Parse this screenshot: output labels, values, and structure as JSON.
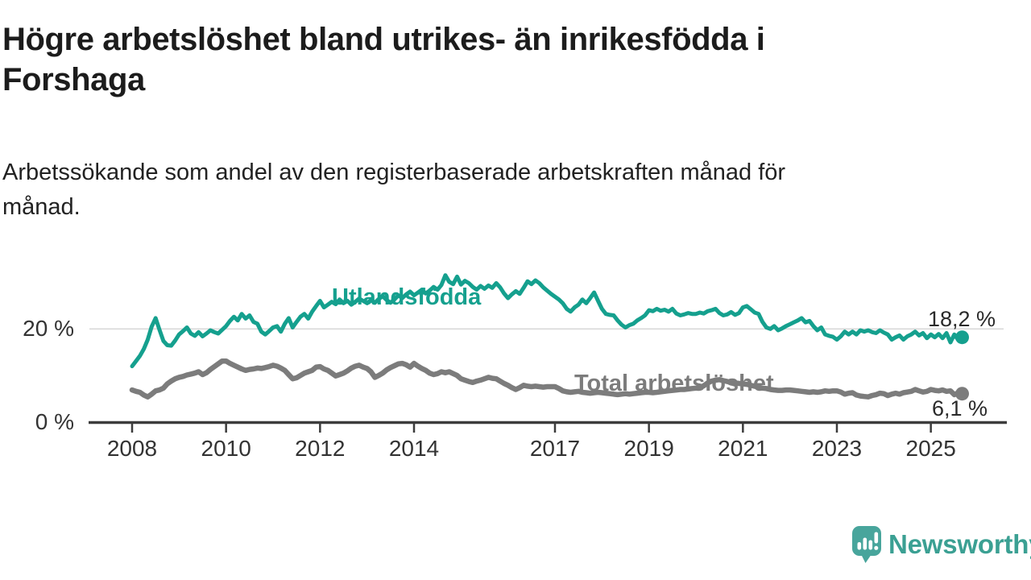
{
  "header": {
    "title": "Högre arbetslöshet bland utrikes- än inrikesfödda i Forshaga",
    "title_lines": [
      "Högre arbetslöshet bland utrikes- än inrikesfödda i",
      "Forshaga"
    ],
    "subtitle": "Arbetssökande som andel av den registerbaserade arbetskraften månad för månad.",
    "subtitle_lines": [
      "Arbetssökande som andel av den registerbaserade arbetskraften månad för",
      "månad."
    ]
  },
  "chart_data": {
    "type": "line",
    "unit": "%",
    "frequency": "monthly",
    "x_start": "2008-01",
    "x_end": "2025-09",
    "ylim": [
      0,
      32
    ],
    "grid": "single horizontal gridline at 20%",
    "legend_position": "inline labels on lines",
    "x_ticks": [
      {
        "year": 2008,
        "label": "2008"
      },
      {
        "year": 2010,
        "label": "2010"
      },
      {
        "year": 2012,
        "label": "2012"
      },
      {
        "year": 2014,
        "label": "2014"
      },
      {
        "year": 2017,
        "label": "2017"
      },
      {
        "year": 2019,
        "label": "2019"
      },
      {
        "year": 2021,
        "label": "2021"
      },
      {
        "year": 2023,
        "label": "2023"
      },
      {
        "year": 2025,
        "label": "2025"
      }
    ],
    "y_ticks": [
      {
        "value": 0,
        "label": "0 %"
      },
      {
        "value": 20,
        "label": "20 %"
      }
    ],
    "gridline_values": [
      20
    ],
    "series": [
      {
        "name": "Utlandsfödda",
        "color": "#15a08e",
        "end_label": "18,2 %",
        "last_value": 18.2,
        "values": [
          12.0,
          13.1,
          14.2,
          15.7,
          17.7,
          20.5,
          22.3,
          19.8,
          17.4,
          16.5,
          16.4,
          17.5,
          18.8,
          19.5,
          20.3,
          19.0,
          18.5,
          19.3,
          18.4,
          19.0,
          19.7,
          19.3,
          19.0,
          19.8,
          20.6,
          21.7,
          22.6,
          21.8,
          23.2,
          22.2,
          22.9,
          21.5,
          21.1,
          19.4,
          18.8,
          19.5,
          20.3,
          20.6,
          19.4,
          21.1,
          22.3,
          20.3,
          21.5,
          22.6,
          23.2,
          22.2,
          23.7,
          24.9,
          26.0,
          24.6,
          25.2,
          25.8,
          25.3,
          26.3,
          25.5,
          26.0,
          25.2,
          25.8,
          26.5,
          26.0,
          25.5,
          26.2,
          25.6,
          26.4,
          27.0,
          26.2,
          25.6,
          26.3,
          27.2,
          26.6,
          27.4,
          28.0,
          27.2,
          27.8,
          28.4,
          27.6,
          28.2,
          29.0,
          28.4,
          29.4,
          31.5,
          30.1,
          29.6,
          31.2,
          29.5,
          30.3,
          29.8,
          29.0,
          28.4,
          29.2,
          28.6,
          29.3,
          28.8,
          29.8,
          28.9,
          27.6,
          26.6,
          27.4,
          28.1,
          27.5,
          28.8,
          30.2,
          29.6,
          30.4,
          29.8,
          28.9,
          28.2,
          27.5,
          26.9,
          26.3,
          25.5,
          24.3,
          23.7,
          24.6,
          25.2,
          26.3,
          25.5,
          26.6,
          27.8,
          26.0,
          24.3,
          23.2,
          23.0,
          22.9,
          21.8,
          20.9,
          20.3,
          20.8,
          21.1,
          21.8,
          22.3,
          22.9,
          24.0,
          23.8,
          24.3,
          23.9,
          24.1,
          23.7,
          24.3,
          23.3,
          22.9,
          23.1,
          23.4,
          23.2,
          23.2,
          23.5,
          23.3,
          23.8,
          24.0,
          24.3,
          23.4,
          22.9,
          23.1,
          23.6,
          23.0,
          23.4,
          24.6,
          24.9,
          24.2,
          23.5,
          23.2,
          21.5,
          20.3,
          20.0,
          20.6,
          19.7,
          20.1,
          20.6,
          21.0,
          21.4,
          21.8,
          22.3,
          21.4,
          21.7,
          20.6,
          19.7,
          20.3,
          18.8,
          18.5,
          18.3,
          17.7,
          18.4,
          19.4,
          18.8,
          19.4,
          18.8,
          19.7,
          19.4,
          19.7,
          19.3,
          19.1,
          19.7,
          19.2,
          18.8,
          17.7,
          18.2,
          18.6,
          17.7,
          18.4,
          18.8,
          19.4,
          18.6,
          19.1,
          18.0,
          18.8,
          18.2,
          18.9,
          18.0,
          19.1,
          17.1,
          18.8,
          17.6,
          18.2
        ]
      },
      {
        "name": "Total arbetslöshet",
        "color": "#7c7c7c",
        "end_label": "6,1 %",
        "last_value": 6.1,
        "values": [
          6.9,
          6.6,
          6.4,
          5.8,
          5.4,
          6.0,
          6.7,
          6.9,
          7.3,
          8.2,
          8.8,
          9.3,
          9.6,
          9.8,
          10.1,
          10.3,
          10.5,
          10.8,
          10.2,
          10.6,
          11.3,
          11.9,
          12.5,
          13.1,
          13.1,
          12.6,
          12.2,
          11.8,
          11.4,
          11.1,
          11.3,
          11.4,
          11.6,
          11.5,
          11.7,
          11.9,
          12.2,
          12.0,
          11.6,
          11.1,
          10.2,
          9.3,
          9.5,
          10.0,
          10.5,
          10.8,
          11.1,
          11.8,
          11.9,
          11.4,
          11.1,
          10.5,
          9.9,
          10.2,
          10.5,
          11.0,
          11.6,
          12.0,
          12.2,
          11.8,
          11.5,
          10.8,
          9.6,
          10.0,
          10.5,
          11.2,
          11.7,
          12.1,
          12.5,
          12.6,
          12.3,
          11.8,
          12.6,
          12.0,
          11.5,
          11.1,
          10.5,
          10.2,
          10.4,
          10.8,
          10.6,
          10.8,
          10.4,
          10.0,
          9.3,
          9.0,
          8.7,
          8.5,
          8.8,
          9.0,
          9.3,
          9.6,
          9.4,
          9.3,
          8.8,
          8.3,
          7.9,
          7.4,
          7.0,
          7.4,
          7.9,
          7.7,
          7.6,
          7.7,
          7.6,
          7.5,
          7.6,
          7.6,
          7.6,
          7.2,
          6.7,
          6.5,
          6.4,
          6.5,
          6.6,
          6.4,
          6.3,
          6.2,
          6.3,
          6.4,
          6.3,
          6.2,
          6.1,
          6.0,
          5.9,
          6.0,
          6.1,
          6.0,
          6.1,
          6.2,
          6.3,
          6.4,
          6.4,
          6.3,
          6.4,
          6.5,
          6.6,
          6.7,
          6.8,
          6.9,
          7.0,
          7.0,
          7.1,
          7.2,
          7.3,
          7.4,
          7.8,
          8.4,
          8.8,
          9.0,
          9.1,
          8.9,
          8.7,
          8.5,
          8.4,
          8.3,
          8.2,
          8.1,
          7.9,
          7.7,
          7.5,
          7.3,
          7.2,
          7.0,
          6.9,
          6.8,
          6.8,
          6.9,
          6.9,
          6.8,
          6.7,
          6.6,
          6.5,
          6.4,
          6.5,
          6.4,
          6.5,
          6.7,
          6.6,
          6.7,
          6.7,
          6.45,
          6.0,
          6.2,
          6.3,
          5.8,
          5.6,
          5.5,
          5.4,
          5.7,
          5.9,
          6.2,
          6.1,
          5.7,
          6.0,
          6.2,
          6.0,
          6.3,
          6.45,
          6.6,
          7.0,
          6.7,
          6.45,
          6.6,
          7.0,
          6.8,
          6.7,
          6.9,
          6.6,
          6.7,
          5.9,
          6.3,
          6.1
        ]
      }
    ]
  },
  "colors": {
    "accent_teal": "#15a08e",
    "series_gray": "#7c7c7c",
    "axis": "#3c3c3c",
    "gridline": "#d9d9d9",
    "tick_text": "#333333",
    "title_text": "#1c1c1c",
    "logo_teal": "#48a59c"
  },
  "footer": {
    "brand": "Newsworthy"
  }
}
